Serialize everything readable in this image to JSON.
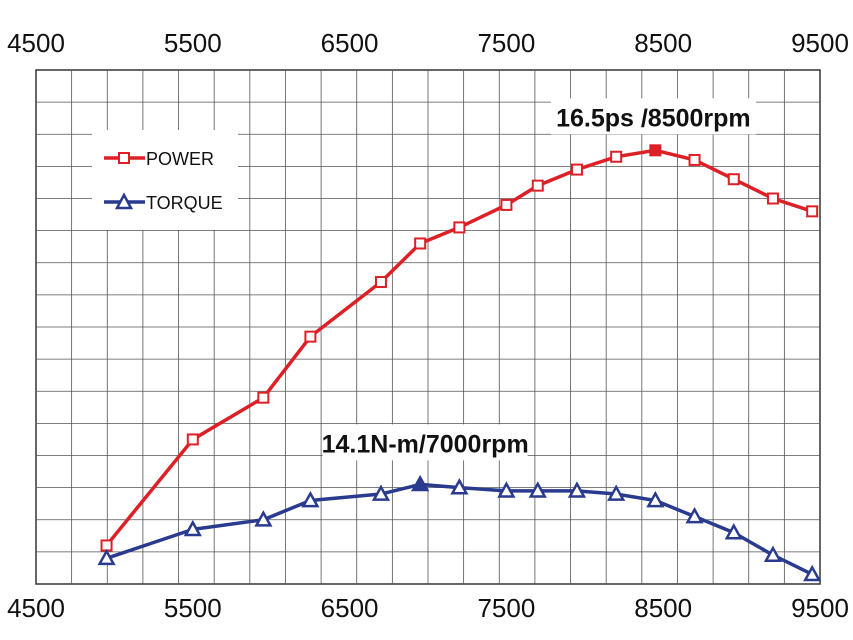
{
  "chart_data": {
    "type": "line",
    "x_ticks": [
      "4500",
      "5500",
      "6500",
      "7500",
      "8500",
      "9500"
    ],
    "xlim": [
      4500,
      9500
    ],
    "y_gridlines": 16,
    "grid": true,
    "legend_position": "top-left",
    "series": [
      {
        "name": "POWER",
        "color": "#dd1f26",
        "marker": "square",
        "x": [
          4950,
          5500,
          5950,
          6250,
          6700,
          6950,
          7200,
          7500,
          7700,
          7950,
          8200,
          8450,
          8700,
          8950,
          9200,
          9450
        ],
        "y": [
          1.2,
          4.5,
          5.8,
          7.7,
          9.4,
          10.6,
          11.1,
          11.8,
          12.4,
          12.9,
          13.3,
          13.5,
          13.2,
          12.6,
          12.0,
          11.6
        ]
      },
      {
        "name": "TORQUE",
        "color": "#2a3b8f",
        "marker": "triangle",
        "x": [
          4950,
          5500,
          5950,
          6250,
          6700,
          6950,
          7200,
          7500,
          7700,
          7950,
          8200,
          8450,
          8700,
          8950,
          9200,
          9450
        ],
        "y": [
          0.8,
          1.7,
          2.0,
          2.6,
          2.8,
          3.1,
          3.0,
          2.9,
          2.9,
          2.9,
          2.8,
          2.6,
          2.1,
          1.6,
          0.9,
          0.3
        ]
      }
    ],
    "annotations": [
      {
        "text": "16.5ps /8500rpm",
        "series": "POWER"
      },
      {
        "text": "14.1N-m/7000rpm",
        "series": "TORQUE"
      }
    ]
  }
}
